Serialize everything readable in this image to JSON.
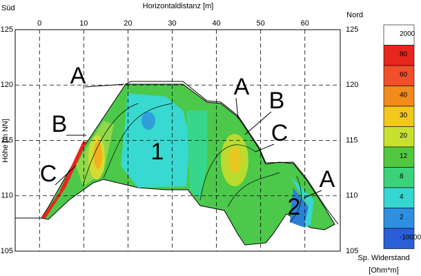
{
  "chart_data": {
    "type": "contour",
    "title": "Horizontaldistanz [m]",
    "y_label": "Höhe [m NN]",
    "left_label": "Süd",
    "right_label": "Nord",
    "xlim": [
      -5.5,
      68
    ],
    "xticks": [
      0,
      10,
      20,
      30,
      40,
      50,
      60
    ],
    "ylim": [
      105,
      125
    ],
    "yticks": [
      105,
      110,
      115,
      120,
      125
    ],
    "grid": true,
    "annotations": [
      "A",
      "B",
      "C",
      "A",
      "B",
      "C",
      "A",
      "1",
      "2"
    ],
    "colorbar": {
      "title": [
        "Sp. Widerstand",
        "[Ohm*m]"
      ],
      "levels": [
        2000,
        80,
        60,
        40,
        30,
        20,
        12,
        8,
        4,
        2,
        -10000
      ],
      "colors": [
        "#ffffff",
        "#e8261c",
        "#f0502a",
        "#f28a1e",
        "#f2c81e",
        "#c8e030",
        "#52c840",
        "#3cd27a",
        "#38d6d0",
        "#2f8fe0",
        "#2a5fd8"
      ]
    }
  }
}
